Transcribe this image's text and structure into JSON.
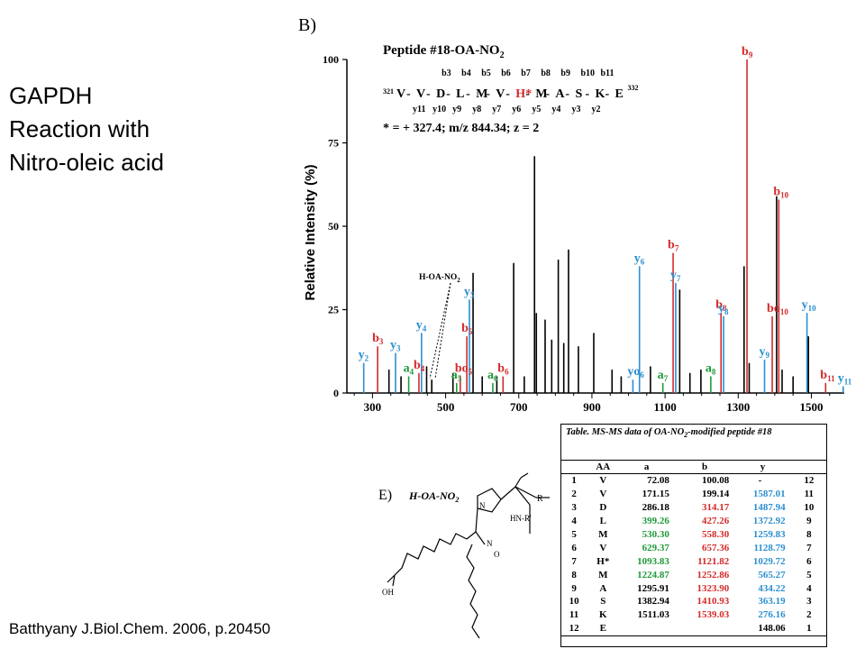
{
  "slide": {
    "title_lines": [
      "GAPDH",
      "Reaction with",
      "Nitro-oleic acid"
    ],
    "citation": "Batthyany J.Biol.Chem.  2006, p.20450"
  },
  "panels": {
    "spectrum_label": "B)",
    "structure_label": "E)"
  },
  "peptide": {
    "title": "Peptide #18-OA-NO",
    "title_sub": "2",
    "start_num": "321",
    "end_num": "332",
    "residues": [
      "V",
      "V",
      "D",
      "L",
      "M",
      "V",
      "H*",
      "M",
      "A",
      "S",
      "K",
      "E"
    ],
    "b_labels": [
      "b3",
      "b4",
      "b5",
      "b6",
      "b7",
      "b8",
      "b9",
      "b10",
      "b11"
    ],
    "y_labels": [
      "y11",
      "y10",
      "y9",
      "y8",
      "y7",
      "y6",
      "y5",
      "y4",
      "y3",
      "y2"
    ],
    "mod_note": "* = + 327.4; m/z 844.34; z = 2"
  },
  "annotation": {
    "h_oa_no2": "H-OA-NO",
    "h_oa_no2_sub": "2"
  },
  "colors": {
    "b_ion": "#d32a2a",
    "y_ion": "#2b8fd0",
    "a_ion": "#1f9a3a",
    "unassigned": "#000000"
  },
  "chart_data": {
    "type": "bar",
    "xlabel": "",
    "ylabel": "Relative Intensity (%)",
    "xlim": [
      230,
      1590
    ],
    "ylim": [
      0,
      100
    ],
    "xticks": [
      300,
      500,
      700,
      900,
      1100,
      1300,
      1500
    ],
    "yticks": [
      0,
      25,
      50,
      75,
      100
    ],
    "series": [
      {
        "name": "b ions",
        "color": "#d32a2a",
        "points": [
          {
            "label": "b3",
            "x": 314,
            "y": 14
          },
          {
            "label": "b4",
            "x": 427,
            "y": 6
          },
          {
            "label": "b5",
            "x": 558,
            "y": 17
          },
          {
            "label": "bo5",
            "x": 540,
            "y": 5
          },
          {
            "label": "b6",
            "x": 657,
            "y": 5
          },
          {
            "label": "b7",
            "x": 1122,
            "y": 42
          },
          {
            "label": "b8",
            "x": 1253,
            "y": 24
          },
          {
            "label": "b9",
            "x": 1324,
            "y": 100
          },
          {
            "label": "b10",
            "x": 1411,
            "y": 58
          },
          {
            "label": "bo10",
            "x": 1393,
            "y": 23
          },
          {
            "label": "b11",
            "x": 1539,
            "y": 3
          }
        ]
      },
      {
        "name": "y ions",
        "color": "#2b8fd0",
        "points": [
          {
            "label": "y2",
            "x": 276,
            "y": 9
          },
          {
            "label": "y3",
            "x": 363,
            "y": 12
          },
          {
            "label": "y4",
            "x": 434,
            "y": 18
          },
          {
            "label": "y5",
            "x": 565,
            "y": 28
          },
          {
            "label": "y6",
            "x": 1030,
            "y": 38
          },
          {
            "label": "yo6",
            "x": 1012,
            "y": 4
          },
          {
            "label": "y7",
            "x": 1129,
            "y": 33
          },
          {
            "label": "y8",
            "x": 1260,
            "y": 23
          },
          {
            "label": "y9",
            "x": 1372,
            "y": 10
          },
          {
            "label": "y10",
            "x": 1488,
            "y": 24
          },
          {
            "label": "y11",
            "x": 1587,
            "y": 2
          }
        ]
      },
      {
        "name": "a ions",
        "color": "#1f9a3a",
        "points": [
          {
            "label": "a4",
            "x": 399,
            "y": 5
          },
          {
            "label": "a5",
            "x": 530,
            "y": 3
          },
          {
            "label": "a6",
            "x": 629,
            "y": 3
          },
          {
            "label": "a7",
            "x": 1094,
            "y": 3
          },
          {
            "label": "a8",
            "x": 1225,
            "y": 5
          }
        ]
      },
      {
        "name": "unassigned",
        "color": "#000000",
        "points": [
          {
            "x": 345,
            "y": 7
          },
          {
            "x": 378,
            "y": 5
          },
          {
            "x": 448,
            "y": 8
          },
          {
            "x": 462,
            "y": 4
          },
          {
            "x": 520,
            "y": 6
          },
          {
            "x": 575,
            "y": 36
          },
          {
            "x": 600,
            "y": 5
          },
          {
            "x": 640,
            "y": 5
          },
          {
            "x": 686,
            "y": 39
          },
          {
            "x": 715,
            "y": 5
          },
          {
            "x": 743,
            "y": 71
          },
          {
            "x": 748,
            "y": 24
          },
          {
            "x": 772,
            "y": 22
          },
          {
            "x": 790,
            "y": 16
          },
          {
            "x": 808,
            "y": 40
          },
          {
            "x": 823,
            "y": 15
          },
          {
            "x": 836,
            "y": 43
          },
          {
            "x": 863,
            "y": 14
          },
          {
            "x": 905,
            "y": 18
          },
          {
            "x": 955,
            "y": 7
          },
          {
            "x": 980,
            "y": 5
          },
          {
            "x": 1060,
            "y": 8
          },
          {
            "x": 1140,
            "y": 31
          },
          {
            "x": 1168,
            "y": 6
          },
          {
            "x": 1198,
            "y": 7
          },
          {
            "x": 1316,
            "y": 38
          },
          {
            "x": 1330,
            "y": 9
          },
          {
            "x": 1405,
            "y": 59
          },
          {
            "x": 1420,
            "y": 7
          },
          {
            "x": 1450,
            "y": 5
          },
          {
            "x": 1492,
            "y": 17
          }
        ]
      }
    ]
  },
  "table": {
    "caption": "Table. MS-MS data of OA-NO",
    "caption_sub": "2",
    "caption_end": "-modified peptide #18",
    "columns": [
      "",
      "AA",
      "a",
      "b",
      "y",
      ""
    ],
    "rows": [
      {
        "n": "1",
        "aa": "V",
        "a": "72.08",
        "b": "100.08",
        "y": "-",
        "m": "12"
      },
      {
        "n": "2",
        "aa": "V",
        "a": "171.15",
        "b": "199.14",
        "y": "1587.01",
        "m": "11"
      },
      {
        "n": "3",
        "aa": "D",
        "a": "286.18",
        "b": "314.17",
        "y": "1487.94",
        "m": "10"
      },
      {
        "n": "4",
        "aa": "L",
        "a": "399.26",
        "b": "427.26",
        "y": "1372.92",
        "m": "9"
      },
      {
        "n": "5",
        "aa": "M",
        "a": "530.30",
        "b": "558.30",
        "y": "1259.83",
        "m": "8"
      },
      {
        "n": "6",
        "aa": "V",
        "a": "629.37",
        "b": "657.36",
        "y": "1128.79",
        "m": "7"
      },
      {
        "n": "7",
        "aa": "H*",
        "a": "1093.83",
        "b": "1121.82",
        "y": "1029.72",
        "m": "6"
      },
      {
        "n": "8",
        "aa": "M",
        "a": "1224.87",
        "b": "1252.86",
        "y": "565.27",
        "m": "5"
      },
      {
        "n": "9",
        "aa": "A",
        "a": "1295.91",
        "b": "1323.90",
        "y": "434.22",
        "m": "4"
      },
      {
        "n": "10",
        "aa": "S",
        "a": "1382.94",
        "b": "1410.93",
        "y": "363.19",
        "m": "3"
      },
      {
        "n": "11",
        "aa": "K",
        "a": "1511.03",
        "b": "1539.03",
        "y": "276.16",
        "m": "2"
      },
      {
        "n": "12",
        "aa": "E",
        "a": "",
        "b": "",
        "y": "148.06",
        "m": "1"
      }
    ],
    "colored_a_rows": [
      4,
      5,
      6,
      7,
      8
    ],
    "colored_b_rows": [
      3,
      4,
      5,
      6,
      7,
      8,
      9,
      10,
      11
    ],
    "colored_y_rows": [
      2,
      3,
      4,
      5,
      6,
      7,
      8,
      9,
      10,
      11
    ]
  },
  "structure": {
    "label": "H-OA-NO",
    "label_sub": "2",
    "r_group": "R",
    "r_prime": "HN-R'",
    "oh": "OH",
    "n_label": "N",
    "no2_label": "N",
    "o_label": "O"
  }
}
